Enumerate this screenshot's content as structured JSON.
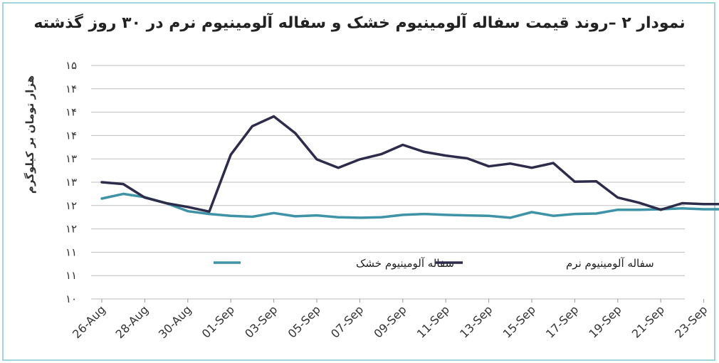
{
  "chart_data": {
    "type": "line",
    "title": "نمودار ۲ –روند قیمت سفاله آلومینیوم خشک و سفاله آلومینیوم نرم در ۳۰ روز گذشته",
    "ylabel": "هزار تومان بر کیلوگرم",
    "xlabel": "",
    "ylim": [
      10,
      15
    ],
    "y_ticks": [
      10,
      10.5,
      11,
      11.5,
      12,
      12.5,
      13,
      13.5,
      14,
      14.5,
      15
    ],
    "y_tick_labels": [
      "۱۰",
      "۱۱",
      "۱۱",
      "۱۲",
      "۱۲",
      "۱۳",
      "۱۳",
      "۱۴",
      "۱۴",
      "۱۴",
      "۱۵"
    ],
    "grid": true,
    "legend_position": "inside-bottom",
    "x": [
      "26-Aug",
      "27-Aug",
      "28-Aug",
      "29-Aug",
      "30-Aug",
      "31-Aug",
      "01-Sep",
      "02-Sep",
      "03-Sep",
      "04-Sep",
      "05-Sep",
      "06-Sep",
      "07-Sep",
      "08-Sep",
      "09-Sep",
      "10-Sep",
      "11-Sep",
      "12-Sep",
      "13-Sep",
      "14-Sep",
      "15-Sep",
      "16-Sep",
      "17-Sep",
      "18-Sep",
      "19-Sep",
      "20-Sep",
      "21-Sep",
      "22-Sep",
      "23-Sep",
      "24-Sep"
    ],
    "x_tick_labels": [
      "26-Aug",
      "28-Aug",
      "30-Aug",
      "01-Sep",
      "03-Sep",
      "05-Sep",
      "07-Sep",
      "09-Sep",
      "11-Sep",
      "13-Sep",
      "15-Sep",
      "17-Sep",
      "19-Sep",
      "21-Sep",
      "23-Sep"
    ],
    "series": [
      {
        "name": "سفاله آلومینیوم خشک",
        "color": "#3f93a6",
        "values": [
          12.15,
          12.25,
          12.18,
          12.05,
          11.88,
          11.82,
          11.78,
          11.76,
          11.84,
          11.77,
          11.79,
          11.75,
          11.74,
          11.75,
          11.8,
          11.82,
          11.8,
          11.79,
          11.78,
          11.74,
          11.86,
          11.78,
          11.82,
          11.83,
          11.91,
          11.91,
          11.92,
          11.94,
          11.92,
          11.92
        ]
      },
      {
        "name": "سفاله آلومینیوم نرم",
        "color": "#2d2c4a",
        "values": [
          12.5,
          12.46,
          12.17,
          12.05,
          11.97,
          11.87,
          13.09,
          13.7,
          13.91,
          13.55,
          12.99,
          12.81,
          12.99,
          13.1,
          13.3,
          13.15,
          13.07,
          13.01,
          12.84,
          12.9,
          12.81,
          12.91,
          12.51,
          12.52,
          12.17,
          12.06,
          11.91,
          12.05,
          12.03,
          12.03
        ]
      }
    ]
  }
}
